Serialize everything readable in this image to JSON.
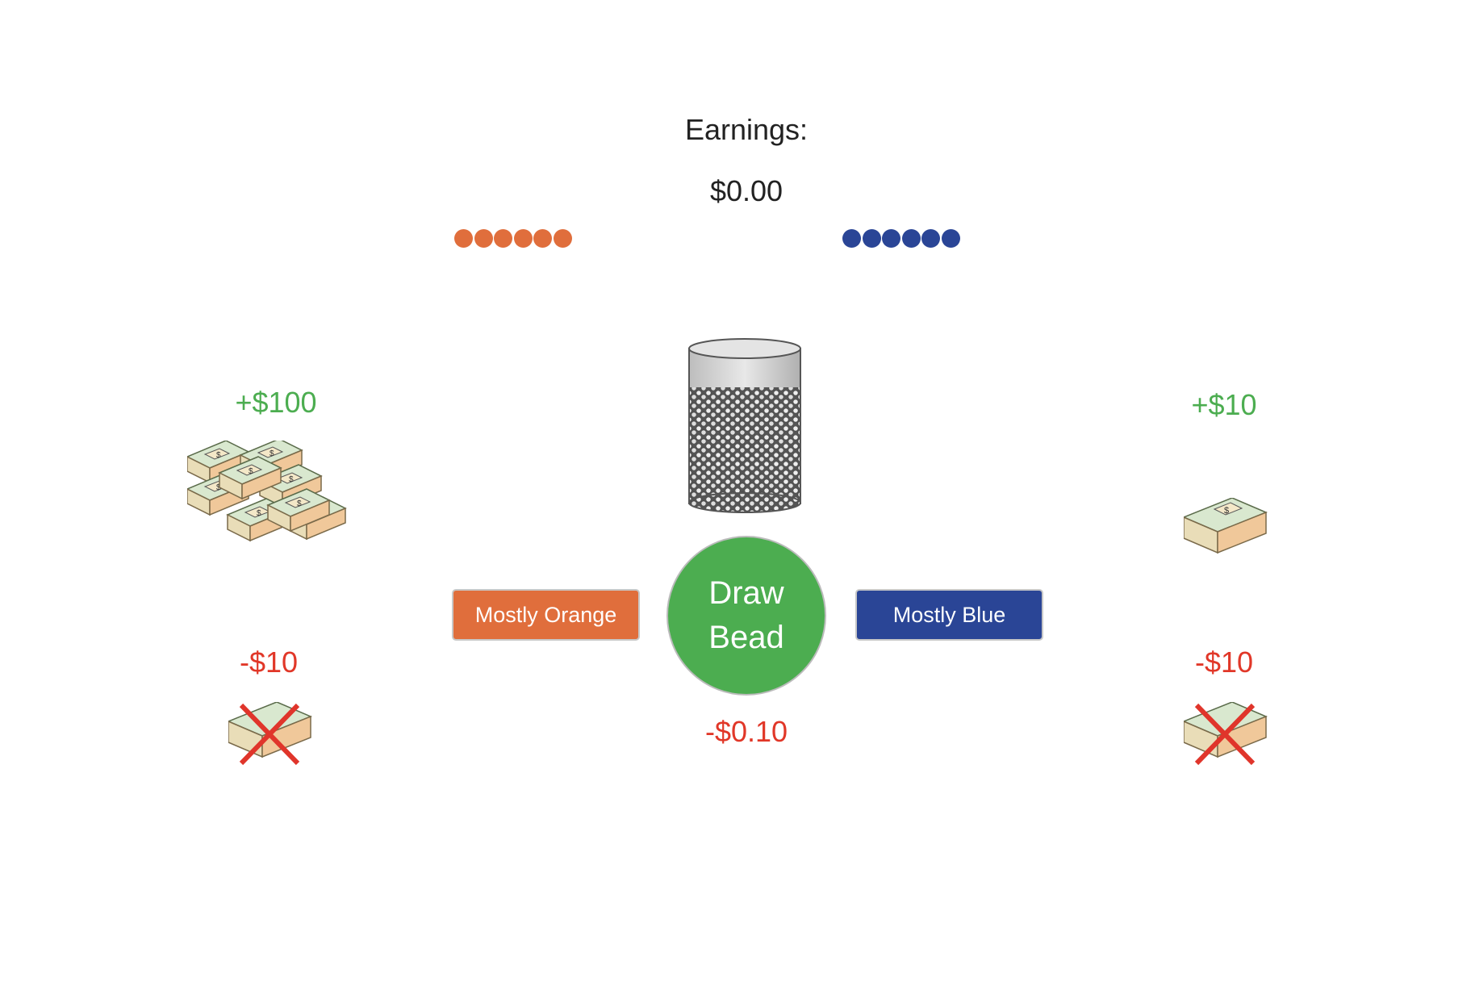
{
  "earnings": {
    "label": "Earnings:",
    "value": "$0.00"
  },
  "bead_rows": {
    "orange": {
      "count": 6,
      "color": "#e06e3c"
    },
    "blue": {
      "count": 6,
      "color": "#2a4596"
    }
  },
  "left_panel": {
    "reward": "+$100",
    "reward_icon": "money-stacks-icon",
    "penalty": "-$10",
    "penalty_icon": "crossed-money-icon"
  },
  "right_panel": {
    "reward": "+$10",
    "reward_icon": "money-stack-icon",
    "penalty": "-$10",
    "penalty_icon": "crossed-money-icon"
  },
  "jar": {
    "icon": "bead-jar-icon"
  },
  "buttons": {
    "orange": {
      "label": "Mostly Orange",
      "color": "#e06e3c"
    },
    "draw": {
      "line1": "Draw",
      "line2": "Bead",
      "color": "#4cad50"
    },
    "blue": {
      "label": "Mostly Blue",
      "color": "#2a4596"
    }
  },
  "draw_cost": "-$0.10"
}
